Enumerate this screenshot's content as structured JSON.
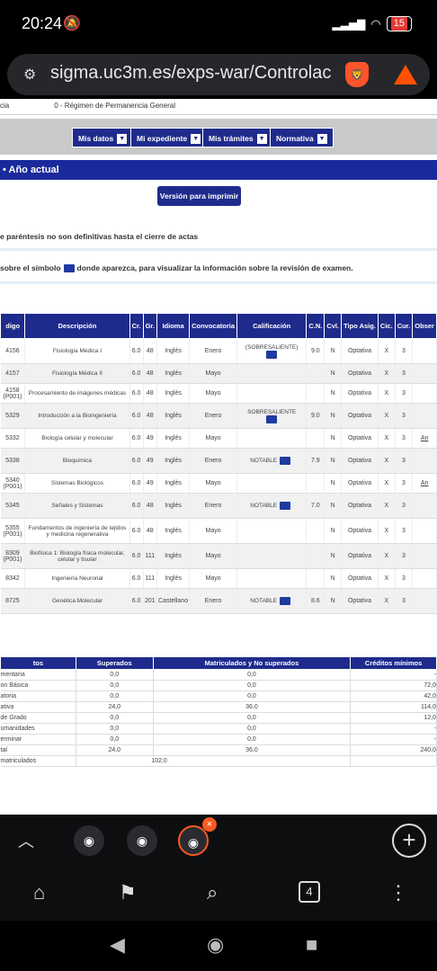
{
  "status": {
    "time": "20:24",
    "mute": "🔕",
    "battery": "15"
  },
  "browser": {
    "url": "sigma.uc3m.es/exps-war/Controlac",
    "tab_count": "4"
  },
  "page": {
    "top_label": "cia",
    "top_value": "0 - Régimen de Permanencia General",
    "menus": [
      "Mis datos",
      "Mi expediente",
      "Mis trámites",
      "Normativa"
    ],
    "section_title": "• Año actual",
    "print_button": "Versión para imprimir",
    "note_parenthesis": "e paréntesis no son definitivas hasta el cierre de actas",
    "note_symbol_pre": "sobre el símbolo",
    "note_symbol_post": "donde aparezca, para visualizar la información sobre la revisión de examen."
  },
  "grades": {
    "headers": [
      "digo",
      "Descripción",
      "Cr.",
      "Gr.",
      "Idioma",
      "Convocatoria",
      "Calificación",
      "C.N.",
      "Cvl.",
      "Tipo Asig.",
      "Cic.",
      "Cur.",
      "Obser"
    ],
    "rows": [
      {
        "code": "4156",
        "desc": "Fisiología Médica I",
        "cr": "6.0",
        "gr": "48",
        "lang": "Inglés",
        "conv": "Enero",
        "grade": "(SOBRESALIENTE)",
        "folder": true,
        "cn": "9.0",
        "cvl": "N",
        "type": "Optativa",
        "cic": "X",
        "cur": "3",
        "obs": ""
      },
      {
        "code": "4157",
        "desc": "Fisiología Médica II",
        "cr": "6.0",
        "gr": "48",
        "lang": "Inglés",
        "conv": "Mayo",
        "grade": "",
        "folder": false,
        "cn": "",
        "cvl": "N",
        "type": "Optativa",
        "cic": "X",
        "cur": "3",
        "obs": ""
      },
      {
        "code": "4158 (P001)",
        "desc": "Procesamiento de imágenes médicas",
        "cr": "6.0",
        "gr": "48",
        "lang": "Inglés",
        "conv": "Mayo",
        "grade": "",
        "folder": false,
        "cn": "",
        "cvl": "N",
        "type": "Optativa",
        "cic": "X",
        "cur": "3",
        "obs": ""
      },
      {
        "code": "5329",
        "desc": "Introducción a la Bioingeniería",
        "cr": "6.0",
        "gr": "48",
        "lang": "Inglés",
        "conv": "Enero",
        "grade": "SOBRESALIENTE",
        "folder": true,
        "cn": "9.0",
        "cvl": "N",
        "type": "Optativa",
        "cic": "X",
        "cur": "3",
        "obs": ""
      },
      {
        "code": "5332",
        "desc": "Biología celular y molecular",
        "cr": "6.0",
        "gr": "49",
        "lang": "Inglés",
        "conv": "Mayo",
        "grade": "",
        "folder": false,
        "cn": "",
        "cvl": "N",
        "type": "Optativa",
        "cic": "X",
        "cur": "3",
        "obs": "An"
      },
      {
        "code": "5338",
        "desc": "Bioquímica",
        "cr": "6.0",
        "gr": "49",
        "lang": "Inglés",
        "conv": "Enero",
        "grade": "NOTABLE",
        "folder": true,
        "cn": "7.9",
        "cvl": "N",
        "type": "Optativa",
        "cic": "X",
        "cur": "3",
        "obs": ""
      },
      {
        "code": "5340 (P001)",
        "desc": "Sistemas Biológicos",
        "cr": "6.0",
        "gr": "49",
        "lang": "Inglés",
        "conv": "Mayo",
        "grade": "",
        "folder": false,
        "cn": "",
        "cvl": "N",
        "type": "Optativa",
        "cic": "X",
        "cur": "3",
        "obs": "An"
      },
      {
        "code": "5345",
        "desc": "Señales y Sistemas",
        "cr": "6.0",
        "gr": "48",
        "lang": "Inglés",
        "conv": "Enero",
        "grade": "NOTABLE",
        "folder": true,
        "cn": "7.0",
        "cvl": "N",
        "type": "Optativa",
        "cic": "X",
        "cur": "3",
        "obs": ""
      },
      {
        "code": "5355 (P001)",
        "desc": "Fundamentos de ingeniería de tejidos y medicina regenerativa",
        "cr": "6.0",
        "gr": "48",
        "lang": "Inglés",
        "conv": "Mayo",
        "grade": "",
        "folder": false,
        "cn": "",
        "cvl": "N",
        "type": "Optativa",
        "cic": "X",
        "cur": "3",
        "obs": ""
      },
      {
        "code": "8309 (P001)",
        "desc": "Biofísica 1: Biología física molecular, celular y tisular",
        "cr": "6.0",
        "gr": "111",
        "lang": "Inglés",
        "conv": "Mayo",
        "grade": "",
        "folder": false,
        "cn": "",
        "cvl": "N",
        "type": "Optativa",
        "cic": "X",
        "cur": "3",
        "obs": ""
      },
      {
        "code": "8342",
        "desc": "Ingeniería Neuronal",
        "cr": "6.0",
        "gr": "111",
        "lang": "Inglés",
        "conv": "Mayo",
        "grade": "",
        "folder": false,
        "cn": "",
        "cvl": "N",
        "type": "Optativa",
        "cic": "X",
        "cur": "3",
        "obs": ""
      },
      {
        "code": "8725",
        "desc": "Genética Molecular",
        "cr": "6.0",
        "gr": "201",
        "lang": "Castellano",
        "conv": "Enero",
        "grade": "NOTABLE",
        "folder": true,
        "cn": "8.6",
        "cvl": "N",
        "type": "Optativa",
        "cic": "X",
        "cur": "3",
        "obs": ""
      }
    ]
  },
  "totals": {
    "headers": [
      "tos",
      "Superados",
      "Matriculados y No superados",
      "Créditos mínimos"
    ],
    "rows": [
      {
        "label": "mentaria",
        "sup": "0,0",
        "mat": "0,0",
        "min": "-"
      },
      {
        "label": "on Básica",
        "sup": "0,0",
        "mat": "0,0",
        "min": "72,0"
      },
      {
        "label": "atoria",
        "sup": "0,0",
        "mat": "0,0",
        "min": "42,0"
      },
      {
        "label": "ativa",
        "sup": "24,0",
        "mat": "36,0",
        "min": "114,0"
      },
      {
        "label": "de Grado",
        "sup": "0,0",
        "mat": "0,0",
        "min": "12,0"
      },
      {
        "label": "umanidades",
        "sup": "0,0",
        "mat": "0,0",
        "min": "-"
      },
      {
        "label": "erminar",
        "sup": "0,0",
        "mat": "0,0",
        "min": "-"
      },
      {
        "label": "tal",
        "sup": "24,0",
        "mat": "36,0",
        "min": "240,0"
      }
    ],
    "matriculados_label": "matriculados",
    "matriculados_value": "102,0"
  }
}
